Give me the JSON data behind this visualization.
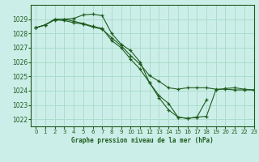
{
  "title": "Graphe pression niveau de la mer (hPa)",
  "bg_color": "#cceee8",
  "grid_color": "#aaddcc",
  "line_color": "#1e5c1e",
  "xlim": [
    -0.5,
    23
  ],
  "ylim": [
    1021.5,
    1030.0
  ],
  "yticks": [
    1022,
    1023,
    1024,
    1025,
    1026,
    1027,
    1028,
    1029
  ],
  "xticks": [
    0,
    1,
    2,
    3,
    4,
    5,
    6,
    7,
    8,
    9,
    10,
    11,
    12,
    13,
    14,
    15,
    16,
    17,
    18,
    19,
    20,
    21,
    22,
    23
  ],
  "series1_x": [
    0,
    1,
    2,
    3,
    4,
    5,
    6,
    7,
    8,
    9,
    10,
    11,
    12,
    13,
    14,
    15,
    16,
    17,
    18
  ],
  "series1_y": [
    1028.4,
    1028.6,
    1029.0,
    1029.0,
    1029.05,
    1029.3,
    1029.35,
    1029.25,
    1028.0,
    1027.25,
    1026.8,
    1026.0,
    1024.55,
    1023.65,
    1023.1,
    1022.15,
    1022.05,
    1022.15,
    1023.35
  ],
  "series2_x": [
    0,
    1,
    2,
    3,
    4,
    5,
    6,
    7,
    8,
    9,
    10,
    11,
    12,
    13,
    14,
    15,
    16,
    17,
    18,
    19,
    20,
    21,
    22,
    23
  ],
  "series2_y": [
    1028.4,
    1028.6,
    1029.0,
    1029.0,
    1028.85,
    1028.7,
    1028.5,
    1028.35,
    1027.5,
    1027.0,
    1026.2,
    1025.5,
    1024.55,
    1023.5,
    1022.65,
    1022.15,
    1022.05,
    1022.15,
    1022.2,
    1024.05,
    1024.15,
    1024.2,
    1024.1,
    1024.05
  ],
  "series3_x": [
    0,
    1,
    2,
    3,
    4,
    5,
    6,
    7,
    8,
    9,
    10,
    11,
    12,
    13,
    14,
    15,
    16,
    17,
    18,
    19,
    20,
    21,
    22,
    23
  ],
  "series3_y": [
    1028.4,
    1028.6,
    1028.95,
    1028.9,
    1028.75,
    1028.65,
    1028.45,
    1028.3,
    1027.7,
    1027.15,
    1026.45,
    1025.85,
    1025.05,
    1024.65,
    1024.2,
    1024.1,
    1024.2,
    1024.2,
    1024.2,
    1024.1,
    1024.1,
    1024.05,
    1024.05,
    1024.05
  ]
}
